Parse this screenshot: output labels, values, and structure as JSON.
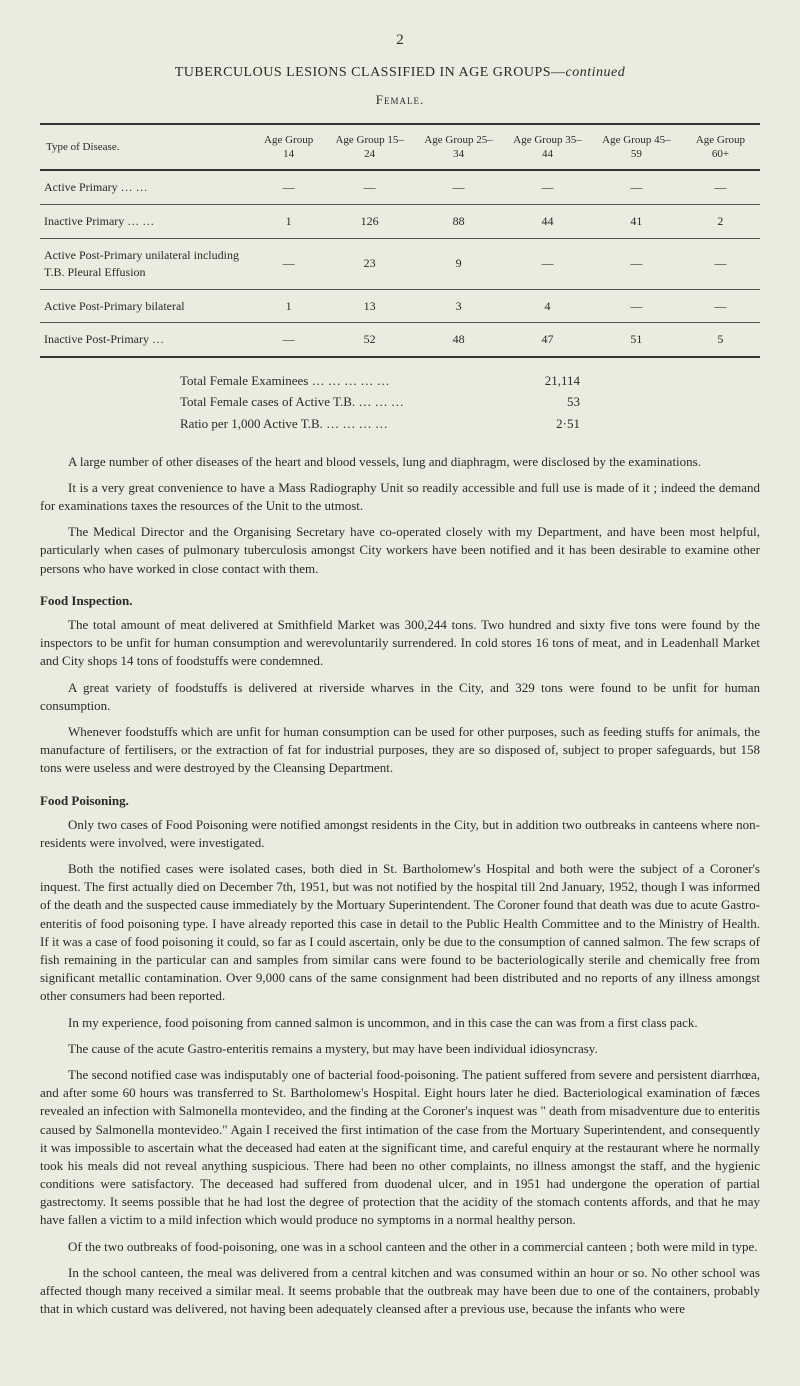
{
  "page_number": "2",
  "main_title": "TUBERCULOUS LESIONS CLASSIFIED IN AGE GROUPS—",
  "main_title_italic": "continued",
  "subtitle": "Female.",
  "table": {
    "headers": [
      "Type of Disease.",
      "Age Group 14",
      "Age Group 15–24",
      "Age Group 25–34",
      "Age Group 35–44",
      "Age Group 45–59",
      "Age Group 60+"
    ],
    "rows": [
      {
        "label": "Active Primary     …   …",
        "cells": [
          "—",
          "—",
          "—",
          "—",
          "—",
          "—"
        ]
      },
      {
        "label": "Inactive Primary    …   …",
        "cells": [
          "1",
          "126",
          "88",
          "44",
          "41",
          "2"
        ]
      },
      {
        "label": "Active Post-Primary unilateral including T.B. Pleural Effusion",
        "cells": [
          "—",
          "23",
          "9",
          "—",
          "—",
          "—"
        ]
      },
      {
        "label": "Active Post-Primary bilateral",
        "cells": [
          "1",
          "13",
          "3",
          "4",
          "—",
          "—"
        ]
      },
      {
        "label": "Inactive Post-Primary     …",
        "cells": [
          "—",
          "52",
          "48",
          "47",
          "51",
          "5"
        ]
      }
    ]
  },
  "summary": [
    {
      "label": "Total Female Examinees …    …    …    …    …",
      "value": "21,114"
    },
    {
      "label": "Total Female cases of Active T.B.     …    …    …",
      "value": "53"
    },
    {
      "label": "Ratio per 1,000 Active T.B.     …    …    …    …",
      "value": "2·51"
    }
  ],
  "intro_paragraphs": [
    "A large number of other diseases of the heart and blood vessels, lung and diaphragm, were disclosed by the examinations.",
    "It is a very great convenience to have a Mass Radiography Unit so readily accessible and full use is made of it ; indeed the demand for examinations taxes the resources of the Unit to the utmost.",
    "The Medical Director and the Organising Secretary have co-operated closely with my Department, and have been most helpful, particularly when cases of pulmonary tuberculosis amongst City workers have been notified and it has been desirable to examine other persons who have worked in close contact with them."
  ],
  "sections": [
    {
      "title": "Food Inspection.",
      "paragraphs": [
        "The total amount of meat delivered at Smithfield Market was 300,244 tons. Two hundred and sixty five tons were found by the inspectors to be unfit for human consumption and werevoluntarily surrendered. In cold stores 16 tons of meat, and in Leadenhall Market and City shops 14 tons of foodstuffs were condemned.",
        "A great variety of foodstuffs is delivered at riverside wharves in the City, and 329 tons were found to be unfit for human consumption.",
        "Whenever foodstuffs which are unfit for human consumption can be used for other purposes, such as feeding stuffs for animals, the manufacture of fertilisers, or the extraction of fat for industrial purposes, they are so disposed of, subject to proper safeguards, but 158 tons were useless and were destroyed by the Cleansing Department."
      ]
    },
    {
      "title": "Food Poisoning.",
      "paragraphs": [
        "Only two cases of Food Poisoning were notified amongst residents in the City, but in addition two outbreaks in canteens where non-residents were involved, were investigated.",
        "Both the notified cases were isolated cases, both died in St. Bartholomew's Hospital and both were the subject of a Coroner's inquest. The first actually died on December 7th, 1951, but was not notified by the hospital till 2nd January, 1952, though I was informed of the death and the suspected cause immediately by the Mortuary Superintendent. The Coroner found that death was due to acute Gastro-enteritis of food poisoning type. I have already reported this case in detail to the Public Health Committee and to the Ministry of Health. If it was a case of food poisoning it could, so far as I could ascertain, only be due to the consumption of canned salmon. The few scraps of fish remaining in the particular can and samples from similar cans were found to be bacteriologically sterile and chemically free from significant metallic contamination. Over 9,000 cans of the same consignment had been distributed and no reports of any illness amongst other consumers had been reported.",
        "In my experience, food poisoning from canned salmon is uncommon, and in this case the can was from a first class pack.",
        "The cause of the acute Gastro-enteritis remains a mystery, but may have been individual idiosyncrasy.",
        "The second notified case was indisputably one of bacterial food-poisoning. The patient suffered from severe and persistent diarrhœa, and after some 60 hours was transferred to St. Bartholomew's Hospital. Eight hours later he died. Bacteriological examination of fæces revealed an infection with Salmonella montevideo, and the finding at the Coroner's inquest was \" death from misadventure due to enteritis caused by Salmonella montevideo.\" Again I received the first intimation of the case from the Mortuary Superintendent, and consequently it was impossible to ascertain what the deceased had eaten at the significant time, and careful enquiry at the restaurant where he normally took his meals did not reveal anything suspicious. There had been no other complaints, no illness amongst the staff, and the hygienic conditions were satisfactory. The deceased had suffered from duodenal ulcer, and in 1951 had undergone the operation of partial gastrectomy. It seems possible that he had lost the degree of protection that the acidity of the stomach contents affords, and that he may have fallen a victim to a mild infection which would produce no symptoms in a normal healthy person.",
        "Of the two outbreaks of food-poisoning, one was in a school canteen and the other in a commercial canteen ; both were mild in type.",
        "In the school canteen, the meal was delivered from a central kitchen and was consumed within an hour or so. No other school was affected though many received a similar meal. It seems probable that the outbreak may have been due to one of the containers, probably that in which custard was delivered, not having been adequately cleansed after a previous use, because the infants who were"
      ]
    }
  ]
}
